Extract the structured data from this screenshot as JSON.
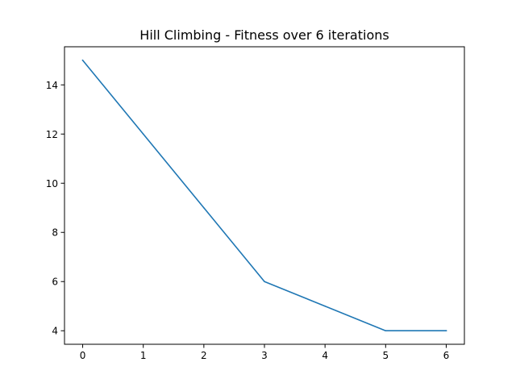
{
  "chart_data": {
    "type": "line",
    "title": "Hill Climbing - Fitness over 6 iterations",
    "xlabel": "",
    "ylabel": "",
    "x": [
      0,
      1,
      2,
      3,
      4,
      5,
      6
    ],
    "series": [
      {
        "values": [
          15,
          12,
          9,
          6,
          5,
          4,
          4
        ],
        "color": "#1f77b4"
      }
    ],
    "xlim": [
      -0.3,
      6.3
    ],
    "ylim": [
      3.45,
      15.55
    ],
    "xticks": [
      0,
      1,
      2,
      3,
      4,
      5,
      6
    ],
    "yticks": [
      4,
      6,
      8,
      10,
      12,
      14
    ],
    "grid": false,
    "legend": "none"
  }
}
